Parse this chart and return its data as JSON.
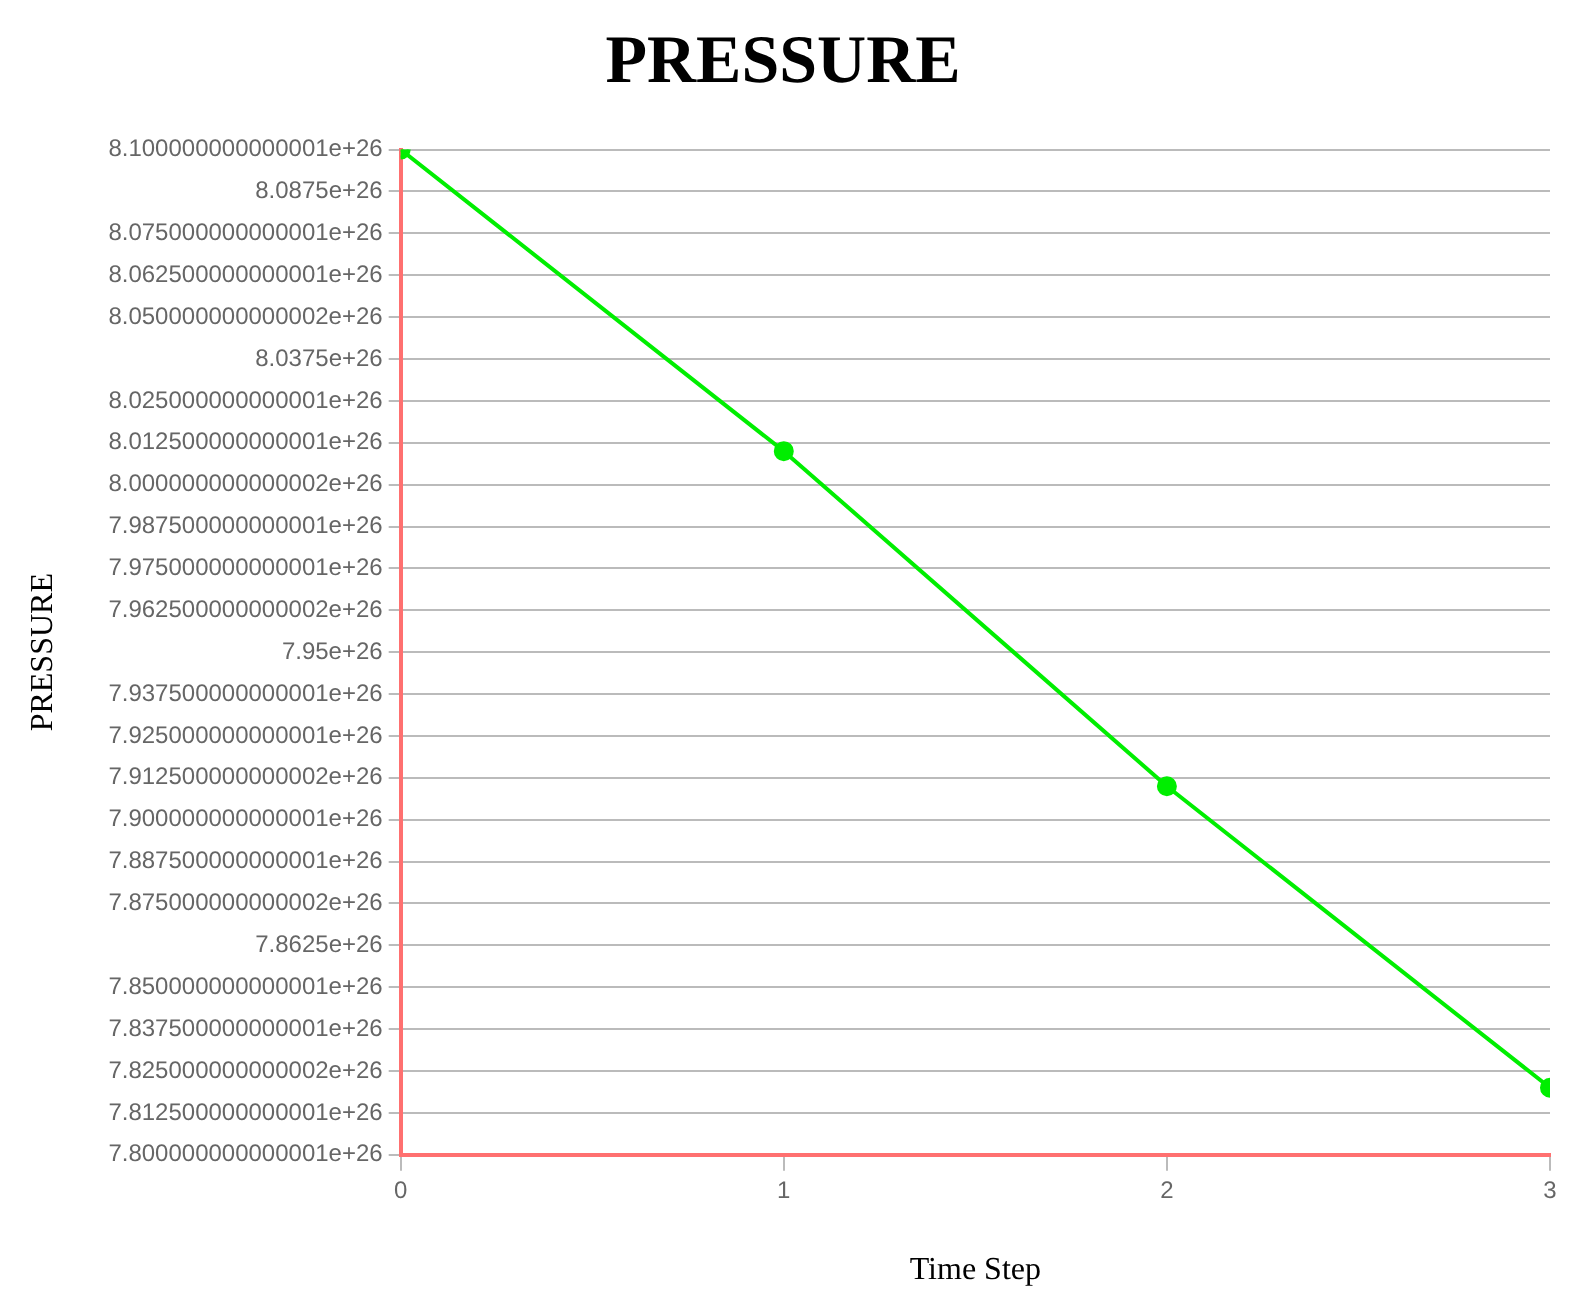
{
  "chart_data": {
    "type": "line",
    "title": "PRESSURE",
    "xlabel": "Time Step",
    "ylabel": "PRESSURE",
    "x": [
      0,
      1,
      2,
      3
    ],
    "series": [
      {
        "color": "#00ee00",
        "values": [
          8.1e+26,
          8.01e+26,
          7.91e+26,
          7.82e+26
        ]
      }
    ],
    "xlim": [
      0,
      3
    ],
    "xticks": [
      0,
      1,
      2,
      3
    ],
    "ylim": [
      7.800000000000001e+26,
      8.100000000000001e+26
    ],
    "yticks": [
      8.100000000000001e+26,
      8.0875e+26,
      8.075000000000001e+26,
      8.062500000000001e+26,
      8.050000000000002e+26,
      8.0375e+26,
      8.025000000000001e+26,
      8.012500000000001e+26,
      8.000000000000002e+26,
      7.987500000000001e+26,
      7.975000000000001e+26,
      7.962500000000002e+26,
      7.95e+26,
      7.937500000000001e+26,
      7.925000000000001e+26,
      7.912500000000002e+26,
      7.900000000000001e+26,
      7.887500000000001e+26,
      7.875000000000002e+26,
      7.8625e+26,
      7.850000000000001e+26,
      7.837500000000001e+26,
      7.825000000000002e+26,
      7.812500000000001e+26,
      7.800000000000001e+26
    ],
    "grid": "y",
    "legend": false,
    "marker": "circle",
    "line_style": "solid"
  }
}
